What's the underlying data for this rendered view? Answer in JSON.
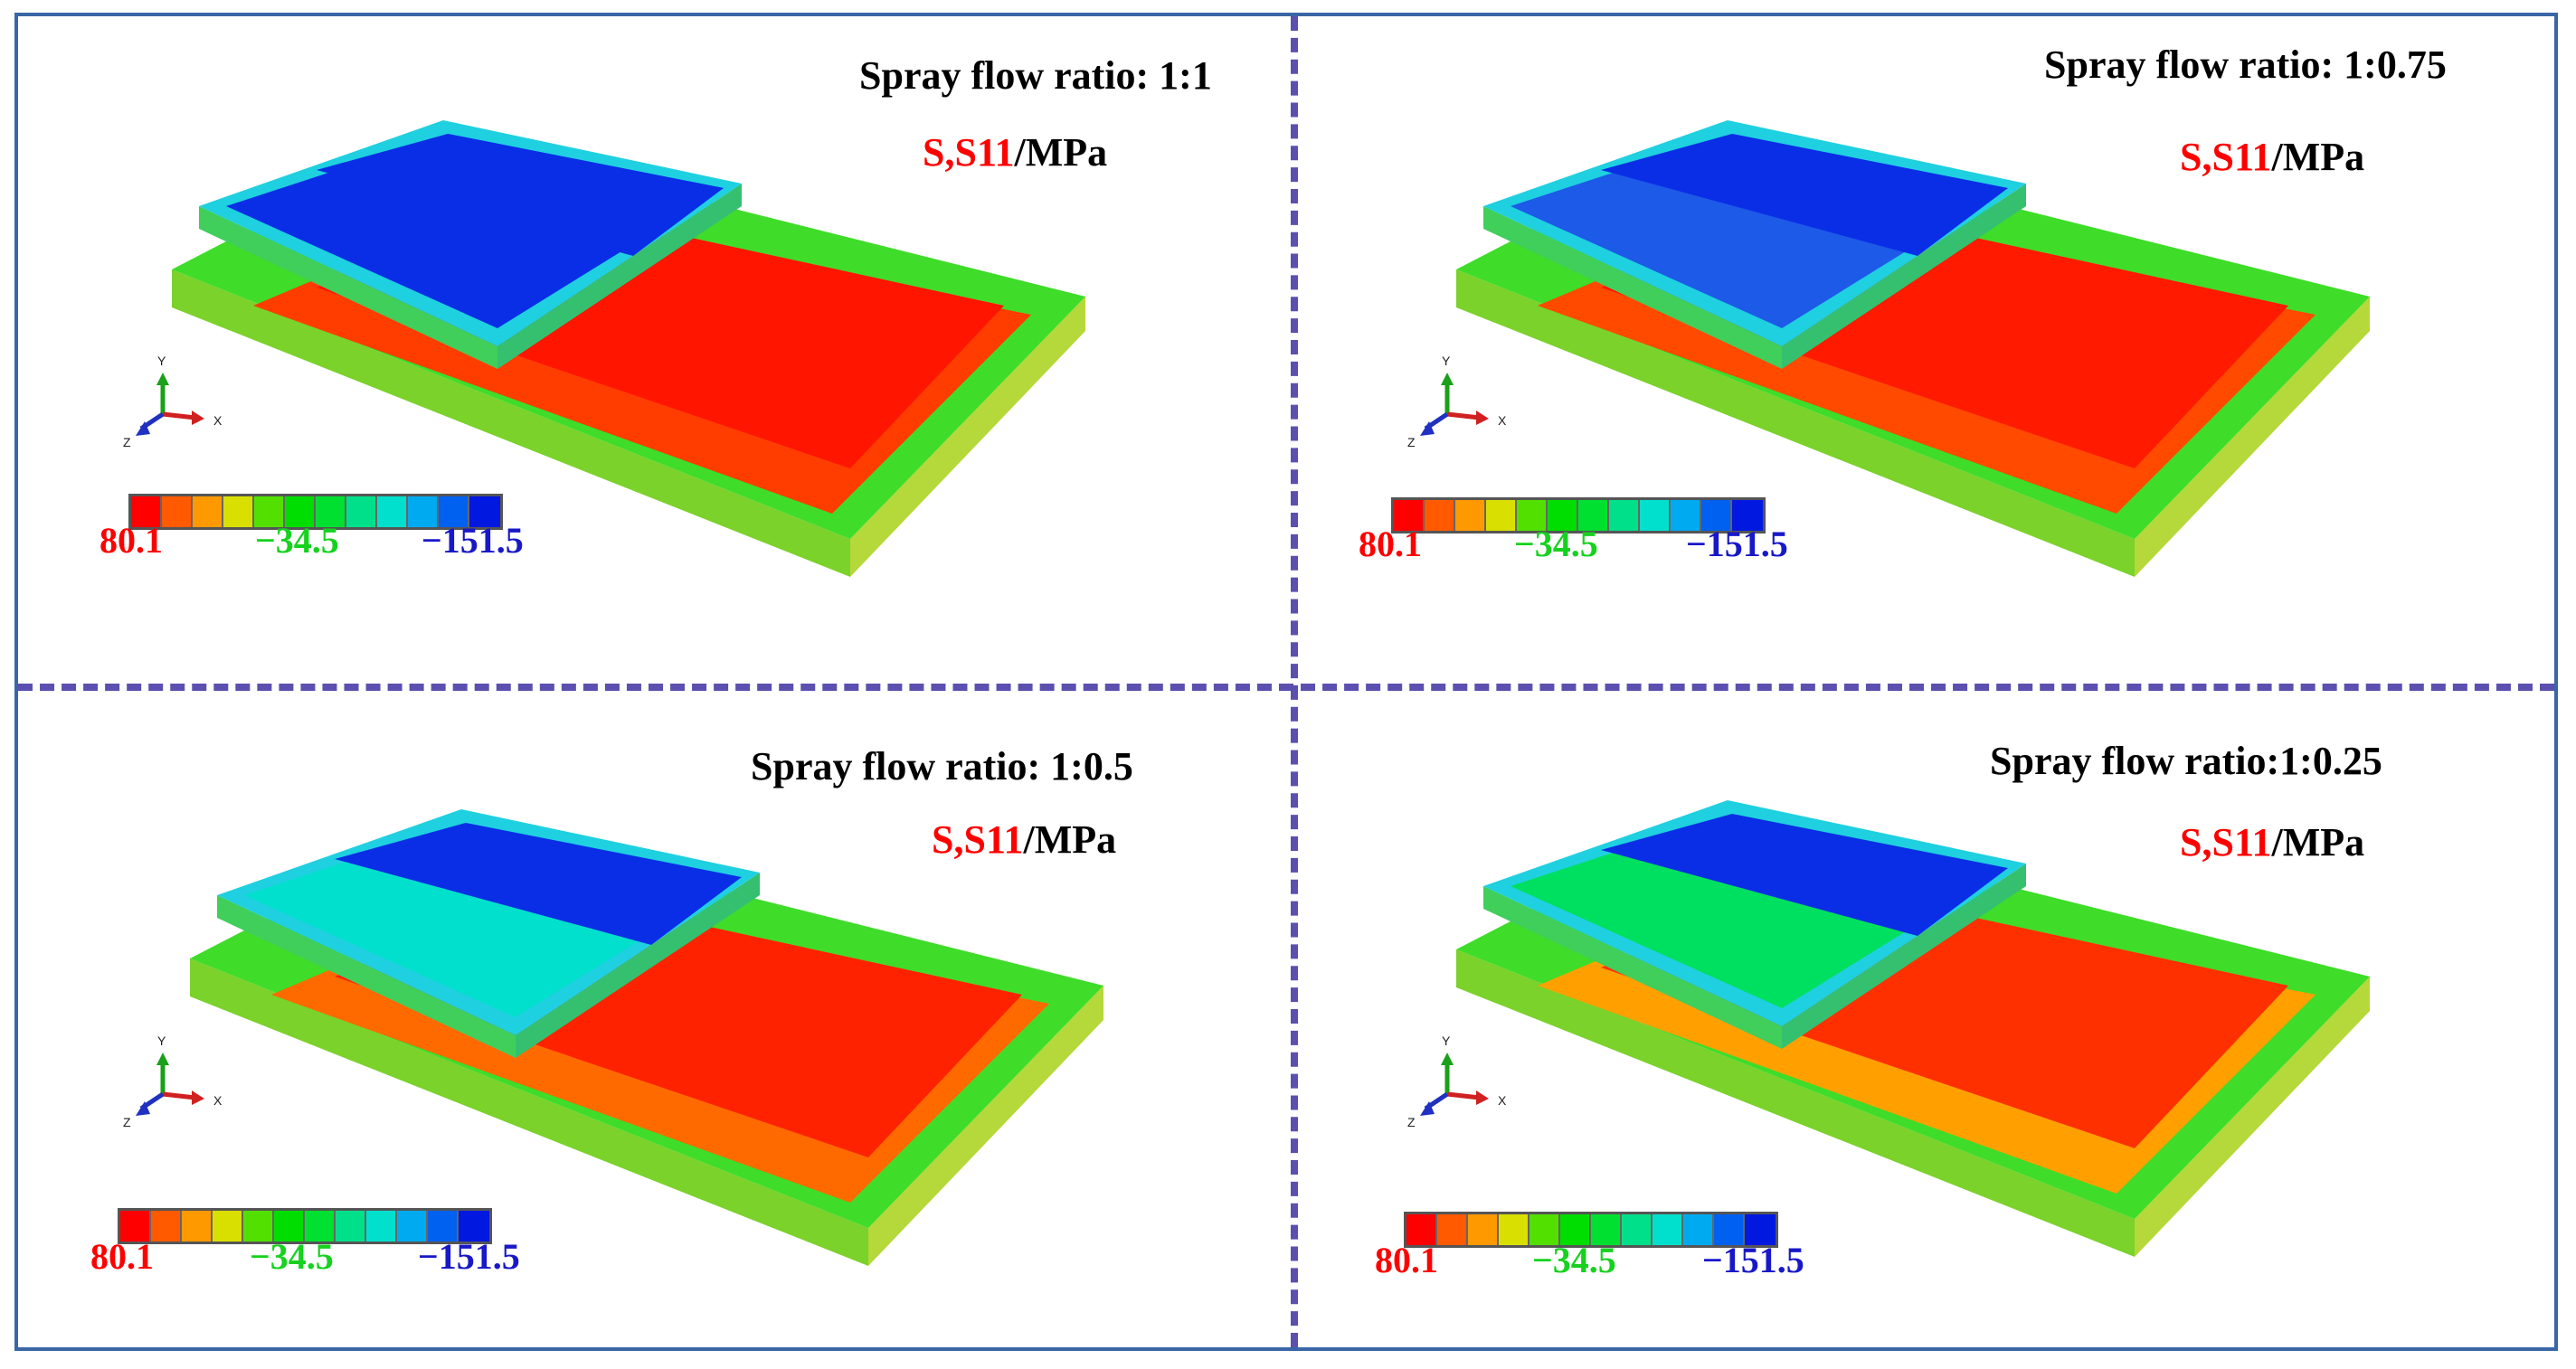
{
  "colors": {
    "frame": "#3a66a6",
    "divider": "#5b4fb0",
    "legend": [
      "#ff0000",
      "#ff5a00",
      "#ff9900",
      "#d9e000",
      "#52e000",
      "#00dd00",
      "#00e030",
      "#00e08a",
      "#00e0cc",
      "#00aaf0",
      "#0060f0",
      "#0018e0"
    ],
    "max_value": "#ff0000",
    "mid_value": "#16d21e",
    "min_value": "#1818c8"
  },
  "legend_values": {
    "max": "80.1",
    "mid": "−34.5",
    "min": "−151.5"
  },
  "stress_label": {
    "name": "S,S11",
    "unit": "/MPa"
  },
  "axes": {
    "x": "X",
    "y": "Y",
    "z": "Z"
  },
  "panels": [
    {
      "title": "Spray flow ratio: 1:1",
      "top_left": "#0a2ee6",
      "top_right": "#0a2ee6",
      "bottom_left": "#0a2ee6",
      "bottom_right": "#1f54ec",
      "right_plate": "#ff1500",
      "right_lower": "#ff3d00"
    },
    {
      "title": "Spray flow ratio: 1:0.75",
      "top_left": "#0a2ee6",
      "top_right": "#0a2ee6",
      "bottom_left": "#1d5ae8",
      "bottom_right": "#1d5ae8",
      "right_plate": "#ff1a00",
      "right_lower": "#ff4a00"
    },
    {
      "title": "Spray flow ratio: 1:0.5",
      "top_left": "#0a2ee6",
      "top_right": "#0a2ee6",
      "bottom_left": "#00e0cc",
      "bottom_right": "#00e0cc",
      "right_plate": "#ff2200",
      "right_lower": "#ff6a00"
    },
    {
      "title": "Spray flow ratio:1:0.25",
      "top_left": "#0a2ee6",
      "top_right": "#0a2ee6",
      "bottom_left": "#00e060",
      "bottom_right": "#00e060",
      "right_plate": "#ff3000",
      "right_lower": "#ffa000"
    }
  ]
}
